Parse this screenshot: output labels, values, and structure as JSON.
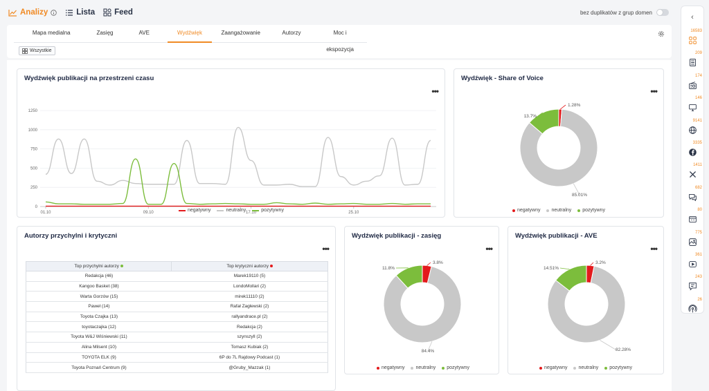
{
  "topnav": {
    "analyses_label": "Analizy",
    "list_label": "Lista",
    "feed_label": "Feed",
    "toggle_label": "bez duplikatów z grup domen"
  },
  "tabs": [
    "Mapa medialna",
    "Zasięg",
    "AVE",
    "Wydźwięk",
    "Zaangażowanie",
    "Autorzy",
    "Moc i ekspozycja"
  ],
  "filter_chip": "Wszystkie",
  "legend": {
    "negative": "negatywny",
    "neutral": "neutralny",
    "positive": "pozytywny"
  },
  "colors": {
    "negative": "#e31a1c",
    "neutral": "#c8c8c8",
    "positive": "#7cbd3c",
    "accent": "#f08a24"
  },
  "timeline_card": {
    "title": "Wydźwięk publikacji na przestrzeni czasu"
  },
  "sov_card": {
    "title": "Wydźwięk - Share of Voice"
  },
  "authors_card": {
    "title": "Autorzy przychylni i krytyczni",
    "col_positive": "Top przychylni autorzy",
    "col_critical": "Top krytyczni autorzy",
    "rows": [
      [
        "Redakcja (46)",
        "Marek19110 (5)"
      ],
      [
        "Kangoo Basket (38)",
        "LondoMollari (2)"
      ],
      [
        "Warta Gorzów (15)",
        "mirek11110 (2)"
      ],
      [
        "Paweł (14)",
        "Rafał Zagłewski (2)"
      ],
      [
        "Toyota Czajka (13)",
        "rallyandrace.pl (2)"
      ],
      [
        "toyotaczajka (12)",
        "Redakcja (2)"
      ],
      [
        "Toyota W&J Wiśniewski (11)",
        "szynszyll (2)"
      ],
      [
        "Alina Milsent (10)",
        "Tomasz Kubiak (2)"
      ],
      [
        "TOYOTA ELK (9)",
        "6P do 7L Rajdowy Podcast (1)"
      ],
      [
        "Toyota Poznań Centrum (9)",
        "@Gruby_Mazzak (1)"
      ]
    ]
  },
  "reach_card": {
    "title": "Wydźwięk publikacji - zasięg"
  },
  "ave_card": {
    "title": "Wydźwięk publikacji - AVE"
  },
  "sidebar_counts": [
    "16583",
    "209",
    "174",
    "146",
    "9141",
    "3335",
    "1411",
    "682",
    "80",
    "775",
    "361",
    "243",
    "26"
  ],
  "sidebar_icons": [
    "grid-icon",
    "newspaper-icon",
    "radio-icon",
    "tv-icon",
    "globe-icon",
    "facebook-icon",
    "x-icon",
    "chat-icon",
    "forum-icon",
    "instagram-icon",
    "youtube-icon",
    "comment-icon",
    "podcast-icon"
  ],
  "chart_data": [
    {
      "type": "line",
      "title": "Wydźwięk publikacji na przestrzeni czasu",
      "x_ticks": [
        "01.10",
        "09.10",
        "17.10",
        "25.10"
      ],
      "y_ticks": [
        0,
        250,
        500,
        750,
        1000,
        1250
      ],
      "ylim": [
        0,
        1250
      ],
      "days": 31,
      "series": [
        {
          "name": "negatywny",
          "color": "#e31a1c",
          "values": [
            5,
            5,
            5,
            5,
            5,
            5,
            5,
            5,
            5,
            5,
            5,
            5,
            5,
            5,
            5,
            5,
            5,
            5,
            5,
            5,
            5,
            5,
            5,
            5,
            5,
            5,
            5,
            5,
            5,
            5,
            5
          ]
        },
        {
          "name": "neutralny",
          "color": "#c8c8c8",
          "values": [
            420,
            880,
            430,
            880,
            330,
            280,
            340,
            300,
            290,
            290,
            290,
            860,
            300,
            300,
            290,
            1030,
            600,
            280,
            280,
            290,
            260,
            260,
            900,
            390,
            280,
            330,
            400,
            890,
            280,
            290,
            860
          ]
        },
        {
          "name": "pozytywny",
          "color": "#7cbd3c",
          "values": [
            60,
            35,
            35,
            30,
            30,
            30,
            40,
            620,
            30,
            30,
            560,
            40,
            30,
            35,
            40,
            35,
            30,
            30,
            50,
            35,
            30,
            45,
            30,
            35,
            40,
            30,
            30,
            40,
            30,
            35,
            35
          ]
        }
      ]
    },
    {
      "type": "pie",
      "title": "Wydźwięk - Share of Voice",
      "labels": [
        "negatywny",
        "neutralny",
        "pozytywny"
      ],
      "values": [
        1.28,
        85.01,
        13.7
      ],
      "value_labels": [
        "1.28%",
        "85.01%",
        "13.7%"
      ]
    },
    {
      "type": "pie",
      "title": "Wydźwięk publikacji - zasięg",
      "labels": [
        "negatywny",
        "neutralny",
        "pozytywny"
      ],
      "values": [
        3.8,
        84.4,
        11.8
      ],
      "value_labels": [
        "3.8%",
        "84.4%",
        "11.8%"
      ]
    },
    {
      "type": "pie",
      "title": "Wydźwięk publikacji - AVE",
      "labels": [
        "negatywny",
        "neutralny",
        "pozytywny"
      ],
      "values": [
        3.2,
        82.28,
        14.51
      ],
      "value_labels": [
        "3.2%",
        "82.28%",
        "14.51%"
      ]
    }
  ]
}
